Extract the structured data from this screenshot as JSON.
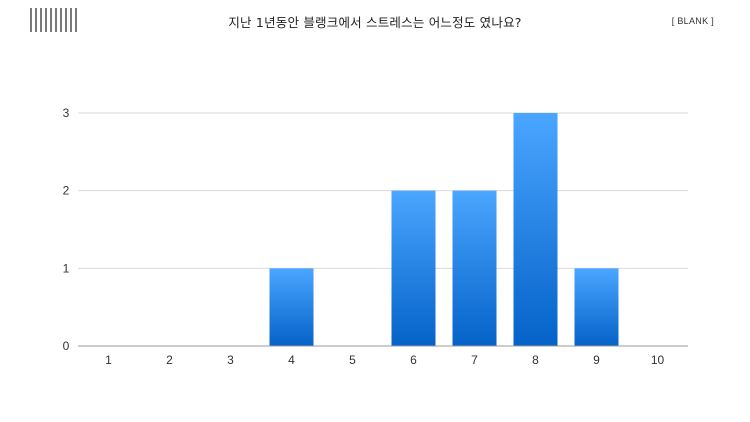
{
  "header": {
    "logo_icon": "barcode-logo-icon",
    "title": "지난 1년동안 블랭크에서 스트레스는 어느정도 였나요?",
    "tag": "[ BLANK ]"
  },
  "chart_data": {
    "type": "bar",
    "title": "지난 1년동안 블랭크에서 스트레스는 어느정도 였나요?",
    "xlabel": "",
    "ylabel": "",
    "categories": [
      "1",
      "2",
      "3",
      "4",
      "5",
      "6",
      "7",
      "8",
      "9",
      "10"
    ],
    "values": [
      0,
      0,
      0,
      1,
      0,
      2,
      2,
      3,
      1,
      0
    ],
    "ylim": [
      0,
      3
    ],
    "yticks": [
      0,
      1,
      2,
      3
    ],
    "grid": true,
    "legend": "none",
    "colors": {
      "bar_top": "#4aa6ff",
      "bar_bottom": "#0562c8",
      "grid": "#d9d9d9",
      "axis": "#999999"
    }
  }
}
